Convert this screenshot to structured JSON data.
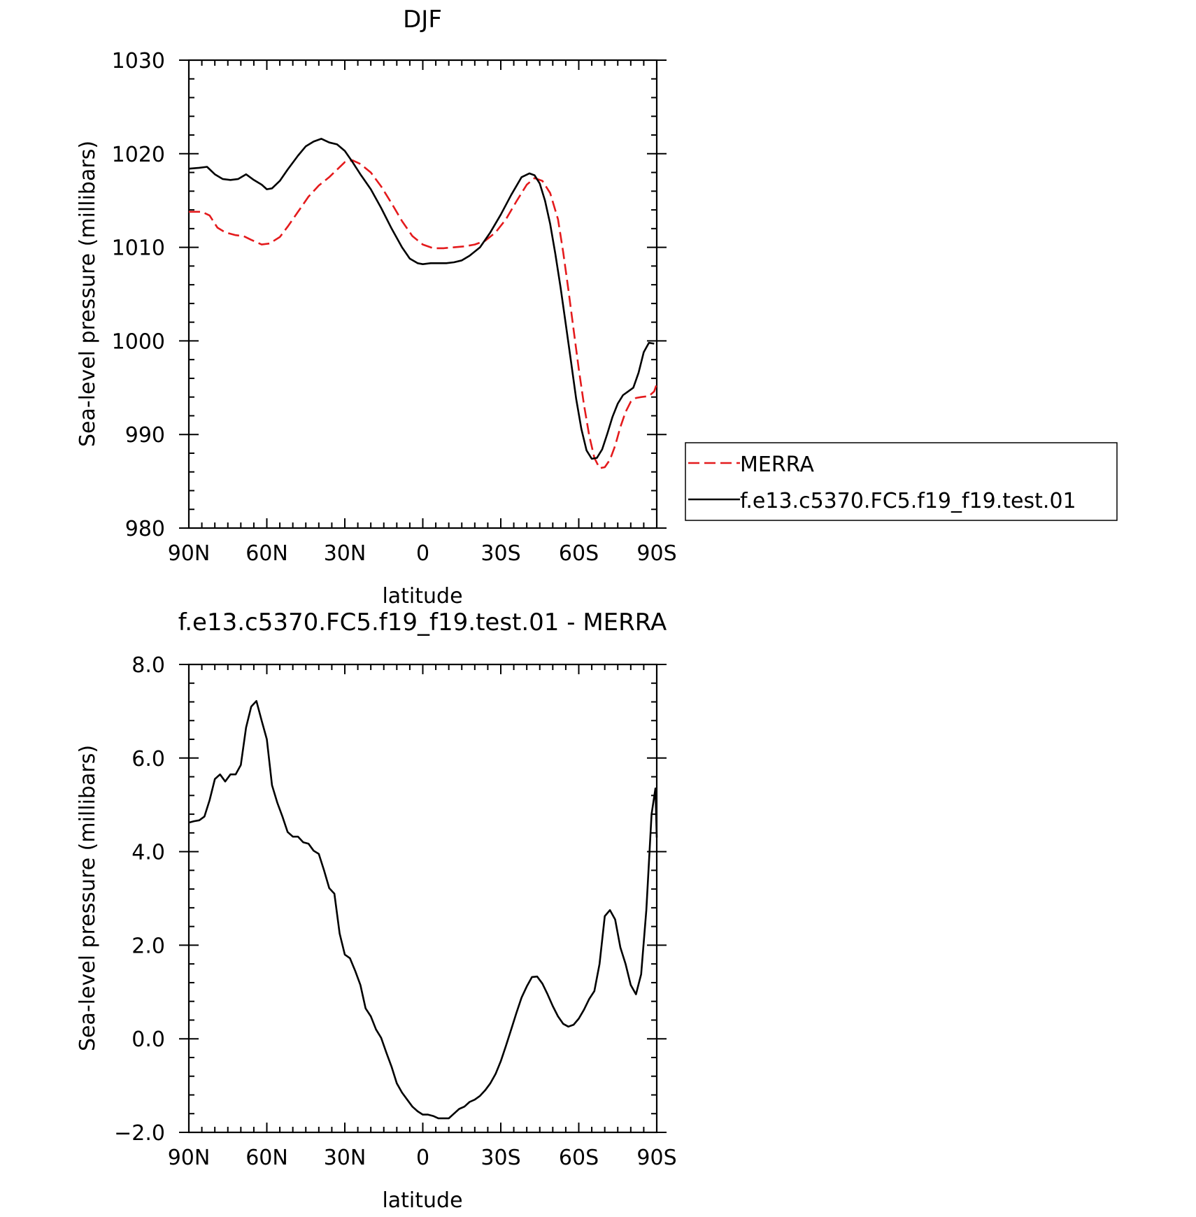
{
  "chart_data": [
    {
      "type": "line",
      "title": "DJF",
      "xlabel": "latitude",
      "ylabel": "Sea-level pressure (millibars)",
      "xlim": [
        90,
        -90
      ],
      "ylim": [
        980,
        1030
      ],
      "x_ticks": [
        90,
        60,
        30,
        0,
        -30,
        -60,
        -90
      ],
      "x_tick_labels": [
        "90N",
        "60N",
        "30N",
        "0",
        "30S",
        "60S",
        "90S"
      ],
      "y_ticks": [
        980,
        990,
        1000,
        1010,
        1020,
        1030
      ],
      "y_tick_labels": [
        "980",
        "990",
        "1000",
        "1010",
        "1020",
        "1030"
      ],
      "legend": "right",
      "series": [
        {
          "name": "MERRA",
          "color": "#e41a1c",
          "dash": "dashed",
          "points": [
            [
              90,
              1013.8
            ],
            [
              85,
              1013.8
            ],
            [
              82,
              1013.4
            ],
            [
              79,
              1012.1
            ],
            [
              76,
              1011.6
            ],
            [
              72,
              1011.3
            ],
            [
              69,
              1011.2
            ],
            [
              66,
              1010.8
            ],
            [
              62,
              1010.3
            ],
            [
              59,
              1010.4
            ],
            [
              55,
              1011.1
            ],
            [
              52,
              1012.2
            ],
            [
              48,
              1013.8
            ],
            [
              44,
              1015.4
            ],
            [
              40,
              1016.6
            ],
            [
              36,
              1017.5
            ],
            [
              33,
              1018.3
            ],
            [
              30,
              1019.1
            ],
            [
              27,
              1019.3
            ],
            [
              24,
              1018.9
            ],
            [
              20,
              1018.0
            ],
            [
              16,
              1016.5
            ],
            [
              12,
              1014.7
            ],
            [
              8,
              1012.8
            ],
            [
              4,
              1011.2
            ],
            [
              0,
              1010.3
            ],
            [
              -4,
              1009.9
            ],
            [
              -8,
              1009.9
            ],
            [
              -12,
              1010.0
            ],
            [
              -16,
              1010.1
            ],
            [
              -20,
              1010.3
            ],
            [
              -24,
              1010.7
            ],
            [
              -28,
              1011.6
            ],
            [
              -32,
              1013.0
            ],
            [
              -36,
              1014.9
            ],
            [
              -40,
              1016.7
            ],
            [
              -43,
              1017.4
            ],
            [
              -46,
              1017.1
            ],
            [
              -49,
              1015.8
            ],
            [
              -52,
              1013.0
            ],
            [
              -54,
              1009.5
            ],
            [
              -56,
              1005.5
            ],
            [
              -58,
              1001.2
            ],
            [
              -60,
              997.0
            ],
            [
              -62,
              993.2
            ],
            [
              -64,
              989.9
            ],
            [
              -66,
              987.5
            ],
            [
              -68,
              986.4
            ],
            [
              -70,
              986.5
            ],
            [
              -72,
              987.3
            ],
            [
              -74,
              988.8
            ],
            [
              -76,
              990.8
            ],
            [
              -78,
              992.4
            ],
            [
              -80,
              993.5
            ],
            [
              -82,
              993.9
            ],
            [
              -84,
              994.0
            ],
            [
              -87,
              994.1
            ],
            [
              -89,
              994.6
            ],
            [
              -90,
              995.4
            ]
          ]
        },
        {
          "name": "f.e13.c5370.FC5.f19_f19.test.01",
          "color": "#000000",
          "dash": "solid",
          "points": [
            [
              90,
              1018.4
            ],
            [
              86,
              1018.5
            ],
            [
              83,
              1018.6
            ],
            [
              80,
              1017.8
            ],
            [
              77,
              1017.3
            ],
            [
              74,
              1017.2
            ],
            [
              71,
              1017.3
            ],
            [
              68,
              1017.8
            ],
            [
              65,
              1017.2
            ],
            [
              62,
              1016.7
            ],
            [
              60,
              1016.2
            ],
            [
              58,
              1016.3
            ],
            [
              55,
              1017.1
            ],
            [
              52,
              1018.3
            ],
            [
              48,
              1019.8
            ],
            [
              45,
              1020.8
            ],
            [
              42,
              1021.3
            ],
            [
              39,
              1021.6
            ],
            [
              36,
              1021.2
            ],
            [
              33,
              1021.0
            ],
            [
              30,
              1020.3
            ],
            [
              27,
              1019.1
            ],
            [
              24,
              1017.8
            ],
            [
              20,
              1016.2
            ],
            [
              16,
              1014.2
            ],
            [
              12,
              1012.0
            ],
            [
              8,
              1010.0
            ],
            [
              5,
              1008.8
            ],
            [
              2,
              1008.3
            ],
            [
              0,
              1008.2
            ],
            [
              -3,
              1008.3
            ],
            [
              -6,
              1008.3
            ],
            [
              -9,
              1008.3
            ],
            [
              -12,
              1008.4
            ],
            [
              -15,
              1008.6
            ],
            [
              -18,
              1009.1
            ],
            [
              -22,
              1010.0
            ],
            [
              -26,
              1011.6
            ],
            [
              -30,
              1013.5
            ],
            [
              -34,
              1015.6
            ],
            [
              -38,
              1017.5
            ],
            [
              -41,
              1017.9
            ],
            [
              -43,
              1017.7
            ],
            [
              -45,
              1016.8
            ],
            [
              -47,
              1015.0
            ],
            [
              -49,
              1012.5
            ],
            [
              -51,
              1009.3
            ],
            [
              -53,
              1005.7
            ],
            [
              -55,
              1001.8
            ],
            [
              -57,
              997.8
            ],
            [
              -59,
              993.8
            ],
            [
              -61,
              990.6
            ],
            [
              -63,
              988.3
            ],
            [
              -65,
              987.4
            ],
            [
              -67,
              987.5
            ],
            [
              -69,
              988.4
            ],
            [
              -71,
              990.1
            ],
            [
              -73,
              991.9
            ],
            [
              -75,
              993.3
            ],
            [
              -77,
              994.2
            ],
            [
              -79,
              994.6
            ],
            [
              -81,
              995.0
            ],
            [
              -83,
              996.6
            ],
            [
              -85,
              998.8
            ],
            [
              -87,
              999.8
            ],
            [
              -89,
              999.7
            ]
          ]
        }
      ]
    },
    {
      "type": "line",
      "title": "f.e13.c5370.FC5.f19_f19.test.01 - MERRA",
      "xlabel": "latitude",
      "ylabel": "Sea-level pressure (millibars)",
      "xlim": [
        90,
        -90
      ],
      "ylim": [
        -2.0,
        8.0
      ],
      "x_ticks": [
        90,
        60,
        30,
        0,
        -30,
        -60,
        -90
      ],
      "x_tick_labels": [
        "90N",
        "60N",
        "30N",
        "0",
        "30S",
        "60S",
        "90S"
      ],
      "y_ticks": [
        -2.0,
        0.0,
        2.0,
        4.0,
        6.0,
        8.0
      ],
      "y_tick_labels": [
        "−2.0",
        "0.0",
        "2.0",
        "4.0",
        "6.0",
        "8.0"
      ],
      "series": [
        {
          "color": "#000000",
          "dash": "solid",
          "points": [
            [
              90,
              4.62
            ],
            [
              88,
              4.65
            ],
            [
              86,
              4.67
            ],
            [
              84,
              4.75
            ],
            [
              82,
              5.1
            ],
            [
              80,
              5.55
            ],
            [
              78,
              5.65
            ],
            [
              76,
              5.5
            ],
            [
              74,
              5.65
            ],
            [
              72,
              5.65
            ],
            [
              70,
              5.85
            ],
            [
              68,
              6.65
            ],
            [
              66,
              7.1
            ],
            [
              64,
              7.22
            ],
            [
              62,
              6.8
            ],
            [
              60,
              6.4
            ],
            [
              58,
              5.42
            ],
            [
              56,
              5.05
            ],
            [
              54,
              4.75
            ],
            [
              52,
              4.42
            ],
            [
              50,
              4.32
            ],
            [
              48,
              4.32
            ],
            [
              46,
              4.2
            ],
            [
              44,
              4.17
            ],
            [
              42,
              4.02
            ],
            [
              40,
              3.95
            ],
            [
              38,
              3.6
            ],
            [
              36,
              3.22
            ],
            [
              34,
              3.1
            ],
            [
              32,
              2.25
            ],
            [
              30,
              1.8
            ],
            [
              28,
              1.72
            ],
            [
              26,
              1.45
            ],
            [
              24,
              1.15
            ],
            [
              22,
              0.65
            ],
            [
              20,
              0.48
            ],
            [
              18,
              0.2
            ],
            [
              16,
              0.02
            ],
            [
              14,
              -0.3
            ],
            [
              12,
              -0.6
            ],
            [
              10,
              -0.95
            ],
            [
              8,
              -1.15
            ],
            [
              6,
              -1.3
            ],
            [
              4,
              -1.45
            ],
            [
              2,
              -1.55
            ],
            [
              0,
              -1.62
            ],
            [
              -2,
              -1.62
            ],
            [
              -4,
              -1.65
            ],
            [
              -6,
              -1.7
            ],
            [
              -8,
              -1.7
            ],
            [
              -10,
              -1.7
            ],
            [
              -12,
              -1.6
            ],
            [
              -14,
              -1.5
            ],
            [
              -16,
              -1.45
            ],
            [
              -18,
              -1.35
            ],
            [
              -20,
              -1.3
            ],
            [
              -22,
              -1.22
            ],
            [
              -24,
              -1.1
            ],
            [
              -26,
              -0.95
            ],
            [
              -28,
              -0.75
            ],
            [
              -30,
              -0.48
            ],
            [
              -32,
              -0.15
            ],
            [
              -34,
              0.2
            ],
            [
              -36,
              0.55
            ],
            [
              -38,
              0.88
            ],
            [
              -40,
              1.12
            ],
            [
              -42,
              1.32
            ],
            [
              -44,
              1.33
            ],
            [
              -46,
              1.18
            ],
            [
              -48,
              0.95
            ],
            [
              -50,
              0.7
            ],
            [
              -52,
              0.48
            ],
            [
              -54,
              0.32
            ],
            [
              -56,
              0.26
            ],
            [
              -58,
              0.3
            ],
            [
              -60,
              0.43
            ],
            [
              -62,
              0.62
            ],
            [
              -64,
              0.85
            ],
            [
              -66,
              1.02
            ],
            [
              -68,
              1.6
            ],
            [
              -70,
              2.62
            ],
            [
              -72,
              2.75
            ],
            [
              -74,
              2.55
            ],
            [
              -76,
              1.95
            ],
            [
              -78,
              1.6
            ],
            [
              -80,
              1.15
            ],
            [
              -82,
              0.95
            ],
            [
              -84,
              1.38
            ],
            [
              -86,
              2.75
            ],
            [
              -88,
              4.8
            ],
            [
              -89.5,
              5.35
            ],
            [
              -90,
              4.3
            ]
          ]
        }
      ]
    }
  ]
}
